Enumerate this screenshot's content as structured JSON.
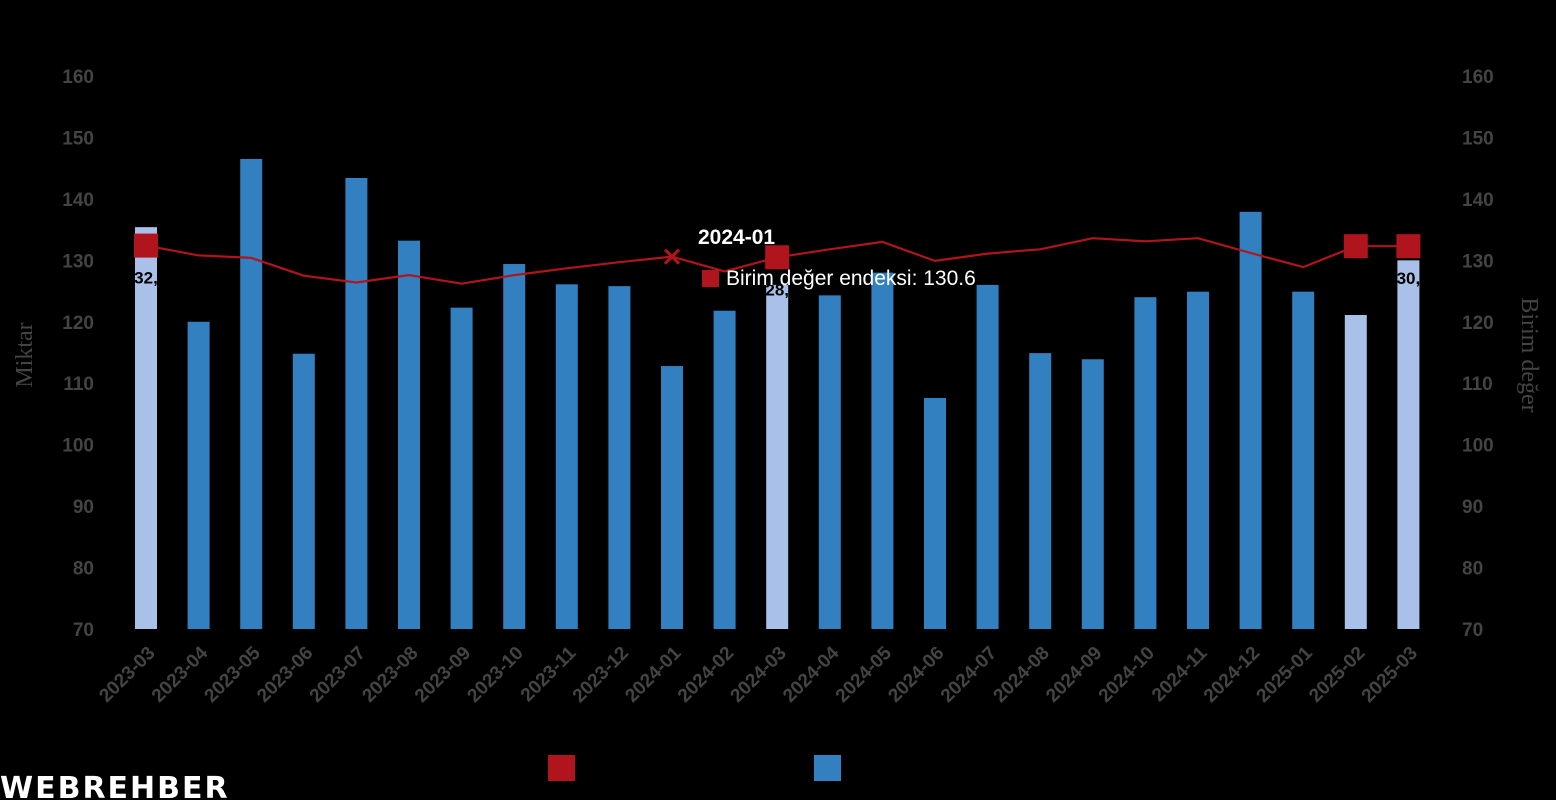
{
  "chart_data": {
    "type": "bar",
    "categories": [
      "2023-03",
      "2023-04",
      "2023-05",
      "2023-06",
      "2023-07",
      "2023-08",
      "2023-09",
      "2023-10",
      "2023-11",
      "2023-12",
      "2024-01",
      "2024-02",
      "2024-03",
      "2024-04",
      "2024-05",
      "2024-06",
      "2024-07",
      "2024-08",
      "2024-09",
      "2024-10",
      "2024-11",
      "2024-12",
      "2025-01",
      "2025-02",
      "2025-03"
    ],
    "series": [
      {
        "name": "",
        "type": "bar",
        "axis": "left",
        "values": [
          135.4,
          120.0,
          146.5,
          114.8,
          143.4,
          133.2,
          122.3,
          129.4,
          126.1,
          125.8,
          112.8,
          121.8,
          126.0,
          124.3,
          128.0,
          107.6,
          126.0,
          114.9,
          113.9,
          124.0,
          124.9,
          137.9,
          124.9,
          121.1,
          130.0
        ],
        "highlighted": [
          "2023-03",
          "2024-03",
          "2025-02",
          "2025-03"
        ],
        "color": "#3380c0",
        "highlight_color": "#a9c1e8"
      },
      {
        "name": "Birim değer endeksi",
        "type": "line",
        "axis": "right",
        "values": [
          132.4,
          130.8,
          130.4,
          127.5,
          126.4,
          127.6,
          126.2,
          127.6,
          128.7,
          129.7,
          130.6,
          128.2,
          130.5,
          131.8,
          133.0,
          129.9,
          131.1,
          131.8,
          133.6,
          133.1,
          133.6,
          131.2,
          128.9,
          132.3,
          132.3
        ],
        "markers": [
          "2023-03",
          "2024-03",
          "2025-02",
          "2025-03"
        ],
        "color": "#b0151e"
      }
    ],
    "data_labels": [
      {
        "category": "2023-03",
        "text": "32,"
      },
      {
        "category": "2024-03",
        "text": "28,"
      },
      {
        "category": "2025-03",
        "text": "30,"
      }
    ],
    "xlabel": "",
    "ylabel": "Miktar",
    "y2label": "Birim değer",
    "ylim": [
      70,
      160
    ],
    "y2lim": [
      70,
      160
    ],
    "yticks": [
      70,
      80,
      90,
      100,
      110,
      120,
      130,
      140,
      150,
      160
    ],
    "grid": false,
    "legend": "bottom-center",
    "tooltip": {
      "category": "2024-01",
      "title": "2024-01",
      "text": "Birim değer endeksi: 130.6"
    }
  },
  "logo_text": "WEBREHBER",
  "colors": {
    "background": "#000000",
    "bar": "#3380c0",
    "bar_highlight": "#a9c1e8",
    "line": "#b0151e",
    "axis_text": "#444444"
  }
}
